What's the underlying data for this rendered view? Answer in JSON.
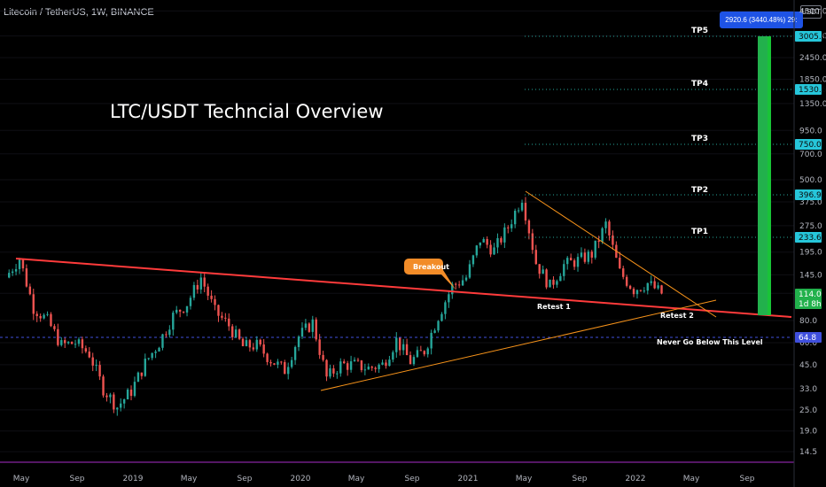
{
  "header": {
    "symbol_line": "Litecoin / TetherUS, 1W, BINANCE"
  },
  "chart_title": "LTC/USDT Techncial Overview",
  "currency_label": "USDT",
  "measure_label": "2920.6 (3440.48%) 29:",
  "colors": {
    "up": "#26a69a",
    "down": "#ef5350",
    "projection": "#22b14c",
    "trendline": "#ff3b3b",
    "channel": "#f7931a",
    "support": "#3f4fdc",
    "price_tag": "#26c6da"
  },
  "price_axis_ticks": [
    "4500.0",
    "3250.0",
    "2450.0",
    "1850.0",
    "1350.0",
    "950.0",
    "700.0",
    "500.0",
    "375.0",
    "275.0",
    "195.0",
    "145.0",
    "114.0",
    "80.0",
    "60.0",
    "45.0",
    "33.0",
    "25.0",
    "19.0",
    "14.5"
  ],
  "time_axis_ticks": [
    "May",
    "Sep",
    "2019",
    "May",
    "Sep",
    "2020",
    "May",
    "Sep",
    "2021",
    "May",
    "Sep",
    "2022",
    "May",
    "Sep"
  ],
  "price_tags": [
    {
      "label": "3005.5",
      "kind": "target"
    },
    {
      "label": "1530.6",
      "kind": "target"
    },
    {
      "label": "750.0",
      "kind": "target"
    },
    {
      "label": "396.9",
      "kind": "target"
    },
    {
      "label": "233.6",
      "kind": "target"
    },
    {
      "label": "114.0",
      "kind": "current"
    },
    {
      "label": "1d 8h",
      "kind": "countdown"
    },
    {
      "label": "64.8",
      "kind": "support"
    }
  ],
  "annotations": {
    "tp1": "TP1",
    "tp2": "TP2",
    "tp3": "TP3",
    "tp4": "TP4",
    "tp5": "TP5",
    "breakout": "Breakout",
    "retest1": "Retest 1",
    "retest2": "Retest 2",
    "never_below": "Never Go Below This Level"
  },
  "chart_data": {
    "type": "candlestick",
    "symbol": "Litecoin / TetherUS",
    "interval": "1W",
    "exchange": "BINANCE",
    "y_scale": "log",
    "targets": [
      {
        "name": "TP1",
        "price": 233.6
      },
      {
        "name": "TP2",
        "price": 396.9
      },
      {
        "name": "TP3",
        "price": 750.0
      },
      {
        "name": "TP4",
        "price": 1530.6
      },
      {
        "name": "TP5",
        "price": 3005.5
      }
    ],
    "support_level": 64.8,
    "last_price": 114.0,
    "close_path": [
      {
        "date": "2018-04",
        "price": 140
      },
      {
        "date": "2018-05",
        "price": 180
      },
      {
        "date": "2018-06",
        "price": 95
      },
      {
        "date": "2018-07",
        "price": 80
      },
      {
        "date": "2018-08",
        "price": 58
      },
      {
        "date": "2018-09",
        "price": 60
      },
      {
        "date": "2018-10",
        "price": 52
      },
      {
        "date": "2018-11",
        "price": 33
      },
      {
        "date": "2018-12",
        "price": 26
      },
      {
        "date": "2019-01",
        "price": 32
      },
      {
        "date": "2019-02",
        "price": 46
      },
      {
        "date": "2019-03",
        "price": 60
      },
      {
        "date": "2019-04",
        "price": 85
      },
      {
        "date": "2019-05",
        "price": 100
      },
      {
        "date": "2019-06",
        "price": 140
      },
      {
        "date": "2019-07",
        "price": 90
      },
      {
        "date": "2019-08",
        "price": 75
      },
      {
        "date": "2019-09",
        "price": 57
      },
      {
        "date": "2019-10",
        "price": 58
      },
      {
        "date": "2019-11",
        "price": 48
      },
      {
        "date": "2019-12",
        "price": 42
      },
      {
        "date": "2020-01",
        "price": 65
      },
      {
        "date": "2020-02",
        "price": 78
      },
      {
        "date": "2020-03",
        "price": 38
      },
      {
        "date": "2020-04",
        "price": 45
      },
      {
        "date": "2020-05",
        "price": 45
      },
      {
        "date": "2020-06",
        "price": 43
      },
      {
        "date": "2020-07",
        "price": 45
      },
      {
        "date": "2020-08",
        "price": 62
      },
      {
        "date": "2020-09",
        "price": 47
      },
      {
        "date": "2020-10",
        "price": 54
      },
      {
        "date": "2020-11",
        "price": 85
      },
      {
        "date": "2020-12",
        "price": 125
      },
      {
        "date": "2021-01",
        "price": 140
      },
      {
        "date": "2021-02",
        "price": 230
      },
      {
        "date": "2021-03",
        "price": 200
      },
      {
        "date": "2021-04",
        "price": 270
      },
      {
        "date": "2021-05",
        "price": 400
      },
      {
        "date": "2021-06",
        "price": 170
      },
      {
        "date": "2021-07",
        "price": 125
      },
      {
        "date": "2021-08",
        "price": 165
      },
      {
        "date": "2021-09",
        "price": 175
      },
      {
        "date": "2021-10",
        "price": 190
      },
      {
        "date": "2021-11",
        "price": 280
      },
      {
        "date": "2021-12",
        "price": 150
      },
      {
        "date": "2022-01",
        "price": 120
      },
      {
        "date": "2022-02",
        "price": 130
      },
      {
        "date": "2022-03",
        "price": 114
      }
    ]
  }
}
